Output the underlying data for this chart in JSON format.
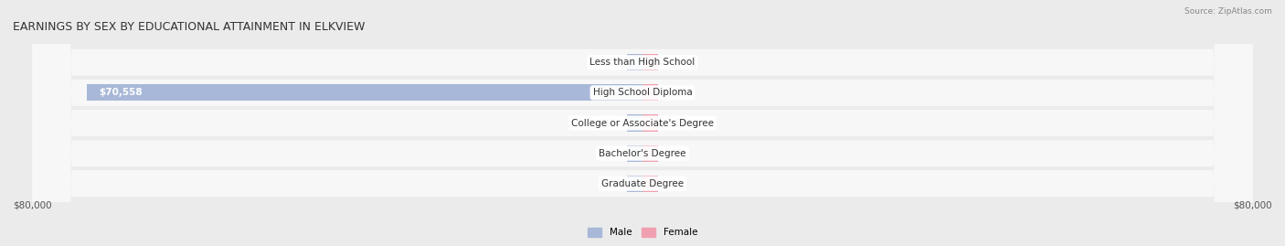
{
  "title": "EARNINGS BY SEX BY EDUCATIONAL ATTAINMENT IN ELKVIEW",
  "source": "Source: ZipAtlas.com",
  "categories": [
    "Less than High School",
    "High School Diploma",
    "College or Associate's Degree",
    "Bachelor's Degree",
    "Graduate Degree"
  ],
  "male_values": [
    0,
    70558,
    0,
    0,
    0
  ],
  "female_values": [
    0,
    0,
    0,
    0,
    0
  ],
  "male_color": "#a8b8d8",
  "female_color": "#f0a0b0",
  "background_color": "#ebebeb",
  "row_bg_color": "#f7f7f7",
  "xlim": [
    -80000,
    80000
  ],
  "xlabel_left": "$80,000",
  "xlabel_right": "$80,000",
  "legend_male": "Male",
  "legend_female": "Female",
  "title_fontsize": 9,
  "label_fontsize": 7.5,
  "tick_fontsize": 7.5,
  "bar_height": 0.55,
  "small_bar": 2000
}
